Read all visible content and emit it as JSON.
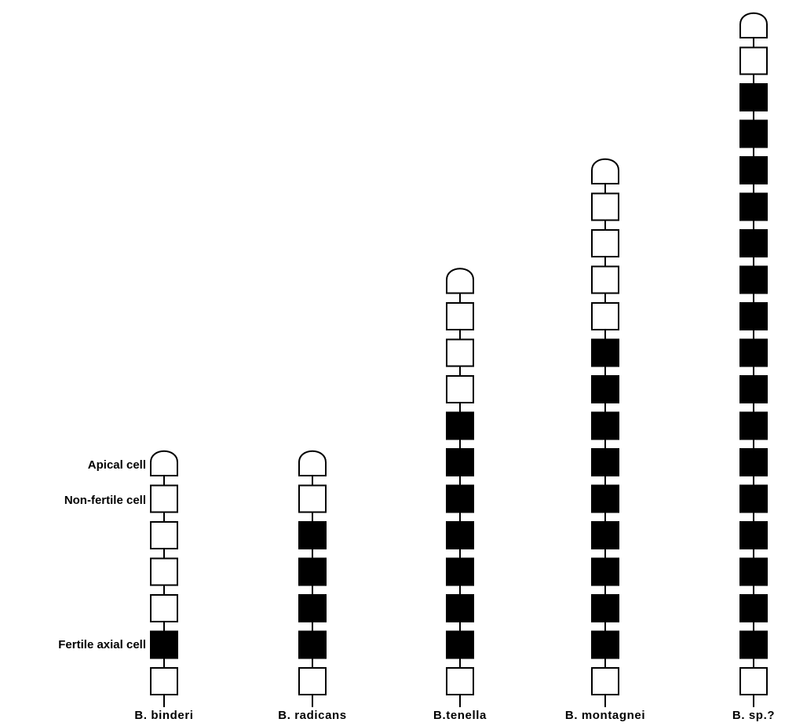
{
  "legend": {
    "apical": "Apical cell",
    "nonfertile": "Non-fertile cell",
    "fertile": "Fertile axial cell"
  },
  "colors": {
    "fertile_fill": "#000000",
    "nonfertile_fill": "#ffffff",
    "outline": "#000000"
  },
  "filaments": [
    {
      "name": "B. binderi",
      "cells": [
        "apical",
        "nonfertile",
        "nonfertile",
        "nonfertile",
        "nonfertile",
        "fertile",
        "nonfertile"
      ]
    },
    {
      "name": "B. radicans",
      "cells": [
        "apical",
        "nonfertile",
        "fertile",
        "fertile",
        "fertile",
        "fertile",
        "nonfertile"
      ]
    },
    {
      "name": "B.tenella",
      "cells": [
        "apical",
        "nonfertile",
        "nonfertile",
        "nonfertile",
        "fertile",
        "fertile",
        "fertile",
        "fertile",
        "fertile",
        "fertile",
        "fertile",
        "nonfertile"
      ]
    },
    {
      "name": "B. montagnei",
      "cells": [
        "apical",
        "nonfertile",
        "nonfertile",
        "nonfertile",
        "nonfertile",
        "fertile",
        "fertile",
        "fertile",
        "fertile",
        "fertile",
        "fertile",
        "fertile",
        "fertile",
        "fertile",
        "nonfertile"
      ]
    },
    {
      "name": "B. sp.?",
      "cells": [
        "apical",
        "nonfertile",
        "fertile",
        "fertile",
        "fertile",
        "fertile",
        "fertile",
        "fertile",
        "fertile",
        "fertile",
        "fertile",
        "fertile",
        "fertile",
        "fertile",
        "fertile",
        "fertile",
        "fertile",
        "fertile",
        "nonfertile"
      ]
    }
  ]
}
